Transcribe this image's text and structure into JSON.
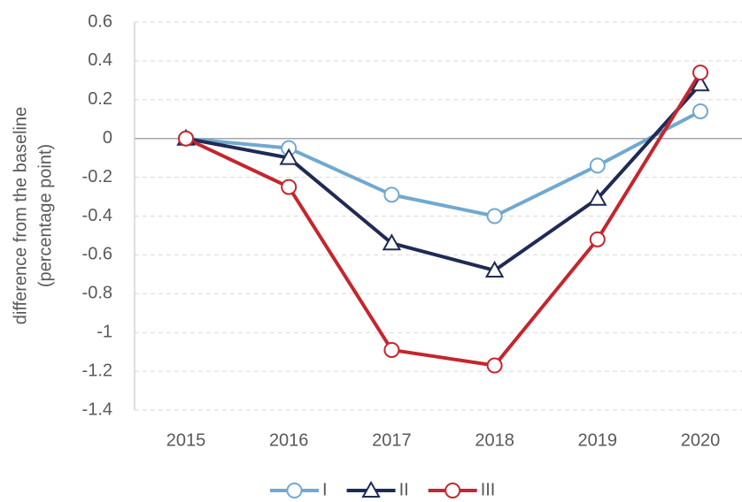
{
  "chart_data": {
    "type": "line",
    "ylabel": [
      "difference from the baseline",
      "(percentage point)"
    ],
    "categories": [
      "2015",
      "2016",
      "2017",
      "2018",
      "2019",
      "2020"
    ],
    "series": [
      {
        "name": "I",
        "color": "#71a9cf",
        "marker": "circle",
        "values": [
          0,
          -0.05,
          -0.29,
          -0.4,
          -0.14,
          0.14
        ]
      },
      {
        "name": "II",
        "color": "#1f2a55",
        "marker": "triangle",
        "values": [
          0,
          -0.1,
          -0.54,
          -0.68,
          -0.31,
          0.28
        ]
      },
      {
        "name": "III",
        "color": "#c4262e",
        "marker": "circle",
        "values": [
          0,
          -0.25,
          -1.09,
          -1.17,
          -0.52,
          0.34
        ]
      }
    ],
    "ylim": [
      -1.4,
      0.6
    ],
    "yticks": [
      0.6,
      0.4,
      0.2,
      0,
      -0.2,
      -0.4,
      -0.6,
      -0.8,
      -1,
      -1.2,
      -1.4
    ],
    "grid": true,
    "legend": "bottom"
  }
}
